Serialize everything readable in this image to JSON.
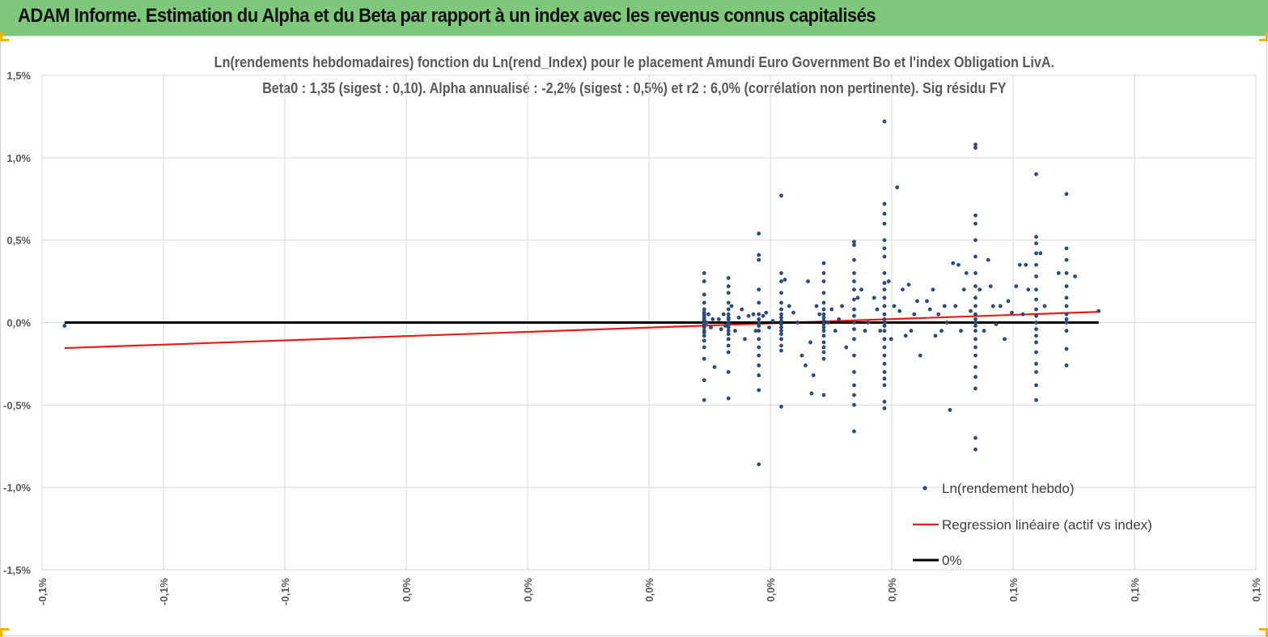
{
  "header": {
    "title": "ADAM Informe. Estimation du Alpha et du Beta par rapport à un index avec les revenus connus capitalisés"
  },
  "colors": {
    "header_bg": "#7dc87b",
    "points": "#2b4a7e",
    "regression": "#e0201b",
    "zero": "#000000",
    "grid": "#d9d9d9",
    "title_text": "#595959"
  },
  "chart_data": {
    "type": "scatter",
    "title": "Ln(rendements hebdomadaires) fonction du Ln(rend_Index) pour le placement Amundi Euro Government Bo et l'index Obligation LivA.",
    "subtitle": "Beta0 : 1,35  (sigest : 0,10).  Alpha annualisé : -2,2% (sigest : 0,5%) et r2 : 6,0% (corrélation non pertinente). Sig résidu FY",
    "xlabel": "",
    "ylabel": "",
    "xlim": [
      -0.1,
      0.1
    ],
    "ylim": [
      -1.5,
      1.5
    ],
    "x_tick_labels": [
      "-0,1%",
      "-0,1%",
      "-0,1%",
      "0,0%",
      "0,0%",
      "0,0%",
      "0,0%",
      "0,0%",
      "0,1%",
      "0,1%",
      "0,1%"
    ],
    "y_tick_labels": [
      "1,5%",
      "1,0%",
      "0,5%",
      "0,0%",
      "-0,5%",
      "-1,0%",
      "-1,5%"
    ],
    "legend": {
      "position": "bottom-right",
      "items": [
        "Ln(rendement hebdo)",
        "Regression linéaire (actif vs index)",
        "0%"
      ]
    },
    "series": [
      {
        "name": "Ln(rendement hebdo)",
        "kind": "points",
        "points": [
          [
            -0.0963,
            -0.02
          ],
          [
            0.0091,
            0.3
          ],
          [
            0.0091,
            0.25
          ],
          [
            0.0091,
            0.17
          ],
          [
            0.0091,
            0.12
          ],
          [
            0.0091,
            0.08
          ],
          [
            0.0091,
            0.06
          ],
          [
            0.0091,
            0.05
          ],
          [
            0.0091,
            0.04
          ],
          [
            0.0091,
            0.03
          ],
          [
            0.0091,
            0.02
          ],
          [
            0.0091,
            0.01
          ],
          [
            0.0091,
            0.0
          ],
          [
            0.0091,
            -0.01
          ],
          [
            0.0091,
            -0.02
          ],
          [
            0.0091,
            -0.03
          ],
          [
            0.0091,
            -0.05
          ],
          [
            0.0091,
            -0.06
          ],
          [
            0.0091,
            -0.08
          ],
          [
            0.0091,
            -0.11
          ],
          [
            0.0091,
            -0.15
          ],
          [
            0.0091,
            -0.22
          ],
          [
            0.0091,
            -0.35
          ],
          [
            0.0091,
            -0.47
          ],
          [
            0.0095,
            0.0
          ],
          [
            0.0098,
            0.05
          ],
          [
            0.0102,
            -0.03
          ],
          [
            0.0105,
            0.02
          ],
          [
            0.0108,
            -0.27
          ],
          [
            0.0131,
            0.27
          ],
          [
            0.0131,
            0.22
          ],
          [
            0.0131,
            0.18
          ],
          [
            0.0131,
            0.12
          ],
          [
            0.0131,
            0.08
          ],
          [
            0.0131,
            0.05
          ],
          [
            0.0131,
            0.03
          ],
          [
            0.0131,
            0.02
          ],
          [
            0.0131,
            0.0
          ],
          [
            0.0131,
            -0.01
          ],
          [
            0.0131,
            -0.03
          ],
          [
            0.0131,
            -0.05
          ],
          [
            0.0131,
            -0.07
          ],
          [
            0.0131,
            -0.1
          ],
          [
            0.0131,
            -0.14
          ],
          [
            0.0131,
            -0.18
          ],
          [
            0.0131,
            -0.3
          ],
          [
            0.0131,
            -0.46
          ],
          [
            0.0115,
            0.02
          ],
          [
            0.0119,
            -0.04
          ],
          [
            0.0123,
            0.05
          ],
          [
            0.0126,
            -0.02
          ],
          [
            0.0136,
            0.1
          ],
          [
            0.0142,
            -0.05
          ],
          [
            0.0148,
            0.03
          ],
          [
            0.0153,
            0.08
          ],
          [
            0.0158,
            -0.1
          ],
          [
            0.0164,
            0.04
          ],
          [
            0.0181,
            0.54
          ],
          [
            0.0181,
            0.41
          ],
          [
            0.0181,
            0.38
          ],
          [
            0.0181,
            0.2
          ],
          [
            0.0181,
            0.12
          ],
          [
            0.0181,
            0.05
          ],
          [
            0.0181,
            0.02
          ],
          [
            0.0181,
            0.0
          ],
          [
            0.0181,
            -0.02
          ],
          [
            0.0181,
            -0.05
          ],
          [
            0.0181,
            -0.1
          ],
          [
            0.0181,
            -0.15
          ],
          [
            0.0181,
            -0.2
          ],
          [
            0.0181,
            -0.26
          ],
          [
            0.0181,
            -0.32
          ],
          [
            0.0181,
            -0.41
          ],
          [
            0.0181,
            -0.86
          ],
          [
            0.0172,
            0.05
          ],
          [
            0.0176,
            -0.05
          ],
          [
            0.0188,
            0.04
          ],
          [
            0.0193,
            0.06
          ],
          [
            0.0198,
            -0.03
          ],
          [
            0.0204,
            0.01
          ],
          [
            0.0218,
            0.77
          ],
          [
            0.0218,
            0.3
          ],
          [
            0.0218,
            0.25
          ],
          [
            0.0218,
            0.18
          ],
          [
            0.0218,
            0.12
          ],
          [
            0.0218,
            0.08
          ],
          [
            0.0218,
            0.05
          ],
          [
            0.0218,
            0.03
          ],
          [
            0.0218,
            0.01
          ],
          [
            0.0218,
            -0.01
          ],
          [
            0.0218,
            -0.03
          ],
          [
            0.0218,
            -0.05
          ],
          [
            0.0218,
            -0.07
          ],
          [
            0.0218,
            -0.1
          ],
          [
            0.0218,
            -0.14
          ],
          [
            0.0218,
            -0.17
          ],
          [
            0.0218,
            -0.51
          ],
          [
            0.0224,
            0.26
          ],
          [
            0.0231,
            0.1
          ],
          [
            0.0238,
            0.06
          ],
          [
            0.0245,
            0.0
          ],
          [
            0.0252,
            -0.2
          ],
          [
            0.0258,
            -0.26
          ],
          [
            0.0262,
            0.25
          ],
          [
            0.0266,
            -0.12
          ],
          [
            0.0271,
            -0.32
          ],
          [
            0.0288,
            0.36
          ],
          [
            0.0288,
            0.3
          ],
          [
            0.0288,
            0.25
          ],
          [
            0.0288,
            0.18
          ],
          [
            0.0288,
            0.12
          ],
          [
            0.0288,
            0.08
          ],
          [
            0.0288,
            0.05
          ],
          [
            0.0288,
            0.03
          ],
          [
            0.0288,
            0.01
          ],
          [
            0.0288,
            -0.01
          ],
          [
            0.0288,
            -0.03
          ],
          [
            0.0288,
            -0.05
          ],
          [
            0.0288,
            -0.08
          ],
          [
            0.0288,
            -0.12
          ],
          [
            0.0288,
            -0.15
          ],
          [
            0.0288,
            -0.18
          ],
          [
            0.0288,
            -0.22
          ],
          [
            0.0288,
            -0.44
          ],
          [
            0.0268,
            -0.43
          ],
          [
            0.0276,
            0.1
          ],
          [
            0.0281,
            0.05
          ],
          [
            0.0295,
            0.0
          ],
          [
            0.0301,
            0.08
          ],
          [
            0.0307,
            -0.05
          ],
          [
            0.0313,
            0.02
          ],
          [
            0.0318,
            0.1
          ],
          [
            0.0325,
            -0.15
          ],
          [
            0.0338,
            0.49
          ],
          [
            0.0338,
            0.47
          ],
          [
            0.0338,
            0.38
          ],
          [
            0.0338,
            0.3
          ],
          [
            0.0338,
            0.25
          ],
          [
            0.0338,
            0.2
          ],
          [
            0.0338,
            0.14
          ],
          [
            0.0338,
            0.08
          ],
          [
            0.0338,
            0.04
          ],
          [
            0.0338,
            0.0
          ],
          [
            0.0338,
            -0.04
          ],
          [
            0.0338,
            -0.1
          ],
          [
            0.0338,
            -0.2
          ],
          [
            0.0338,
            -0.3
          ],
          [
            0.0338,
            -0.38
          ],
          [
            0.0338,
            -0.44
          ],
          [
            0.0338,
            -0.5
          ],
          [
            0.0338,
            -0.66
          ],
          [
            0.0344,
            0.15
          ],
          [
            0.035,
            0.2
          ],
          [
            0.0356,
            -0.05
          ],
          [
            0.0361,
            0.0
          ],
          [
            0.0388,
            1.22
          ],
          [
            0.0388,
            0.72
          ],
          [
            0.0388,
            0.66
          ],
          [
            0.0388,
            0.6
          ],
          [
            0.0388,
            0.5
          ],
          [
            0.0388,
            0.45
          ],
          [
            0.0388,
            0.4
          ],
          [
            0.0388,
            0.3
          ],
          [
            0.0388,
            0.24
          ],
          [
            0.0388,
            0.2
          ],
          [
            0.0388,
            0.15
          ],
          [
            0.0388,
            0.1
          ],
          [
            0.0388,
            0.05
          ],
          [
            0.0388,
            0.02
          ],
          [
            0.0388,
            0.0
          ],
          [
            0.0388,
            -0.02
          ],
          [
            0.0388,
            -0.05
          ],
          [
            0.0388,
            -0.1
          ],
          [
            0.0388,
            -0.15
          ],
          [
            0.0388,
            -0.2
          ],
          [
            0.0388,
            -0.25
          ],
          [
            0.0388,
            -0.3
          ],
          [
            0.0388,
            -0.34
          ],
          [
            0.0388,
            -0.38
          ],
          [
            0.0388,
            -0.48
          ],
          [
            0.0388,
            -0.52
          ],
          [
            0.0371,
            0.15
          ],
          [
            0.0376,
            0.08
          ],
          [
            0.0381,
            -0.05
          ],
          [
            0.0395,
            0.25
          ],
          [
            0.0399,
            -0.1
          ],
          [
            0.0404,
            0.1
          ],
          [
            0.0409,
            0.82
          ],
          [
            0.0413,
            0.07
          ],
          [
            0.0418,
            0.2
          ],
          [
            0.0423,
            -0.08
          ],
          [
            0.0428,
            0.23
          ],
          [
            0.0432,
            -0.05
          ],
          [
            0.0437,
            0.05
          ],
          [
            0.0442,
            0.13
          ],
          [
            0.0447,
            -0.2
          ],
          [
            0.0458,
            0.13
          ],
          [
            0.0463,
            0.08
          ],
          [
            0.0468,
            0.2
          ],
          [
            0.0472,
            -0.08
          ],
          [
            0.0477,
            0.05
          ],
          [
            0.0482,
            -0.05
          ],
          [
            0.0487,
            0.1
          ],
          [
            0.0491,
            0.0
          ],
          [
            0.0496,
            -0.53
          ],
          [
            0.0501,
            0.36
          ],
          [
            0.0505,
            0.1
          ],
          [
            0.051,
            0.35
          ],
          [
            0.0514,
            -0.05
          ],
          [
            0.0519,
            0.2
          ],
          [
            0.0523,
            0.3
          ],
          [
            0.0538,
            0.65
          ],
          [
            0.0538,
            0.6
          ],
          [
            0.0538,
            0.5
          ],
          [
            0.0538,
            0.4
          ],
          [
            0.0538,
            0.3
          ],
          [
            0.0538,
            0.22
          ],
          [
            0.0538,
            0.15
          ],
          [
            0.0538,
            0.1
          ],
          [
            0.0538,
            0.05
          ],
          [
            0.0538,
            0.02
          ],
          [
            0.0538,
            0.0
          ],
          [
            0.0538,
            -0.02
          ],
          [
            0.0538,
            -0.05
          ],
          [
            0.0538,
            -0.1
          ],
          [
            0.0538,
            -0.15
          ],
          [
            0.0538,
            -0.2
          ],
          [
            0.0538,
            -0.27
          ],
          [
            0.0538,
            -0.33
          ],
          [
            0.0538,
            -0.4
          ],
          [
            0.0538,
            -0.7
          ],
          [
            0.0538,
            -0.77
          ],
          [
            0.0538,
            1.08
          ],
          [
            0.0538,
            1.06
          ],
          [
            0.053,
            0.07
          ],
          [
            0.0545,
            0.2
          ],
          [
            0.0552,
            -0.05
          ],
          [
            0.0559,
            0.38
          ],
          [
            0.0563,
            0.22
          ],
          [
            0.0567,
            0.1
          ],
          [
            0.0572,
            -0.01
          ],
          [
            0.0579,
            0.1
          ],
          [
            0.0586,
            -0.1
          ],
          [
            0.0592,
            0.13
          ],
          [
            0.0598,
            0.06
          ],
          [
            0.0605,
            0.22
          ],
          [
            0.0611,
            0.35
          ],
          [
            0.0616,
            0.05
          ],
          [
            0.0621,
            0.35
          ],
          [
            0.0625,
            0.2
          ],
          [
            0.0638,
            0.9
          ],
          [
            0.0638,
            0.52
          ],
          [
            0.0638,
            0.48
          ],
          [
            0.0638,
            0.42
          ],
          [
            0.0638,
            0.35
          ],
          [
            0.0638,
            0.28
          ],
          [
            0.0638,
            0.2
          ],
          [
            0.0638,
            0.14
          ],
          [
            0.0638,
            0.08
          ],
          [
            0.0638,
            0.04
          ],
          [
            0.0638,
            0.0
          ],
          [
            0.0638,
            -0.04
          ],
          [
            0.0638,
            -0.08
          ],
          [
            0.0638,
            -0.12
          ],
          [
            0.0638,
            -0.18
          ],
          [
            0.0638,
            -0.25
          ],
          [
            0.0638,
            -0.3
          ],
          [
            0.0638,
            -0.38
          ],
          [
            0.0638,
            -0.47
          ],
          [
            0.0645,
            0.42
          ],
          [
            0.0652,
            0.1
          ],
          [
            0.0688,
            0.78
          ],
          [
            0.0688,
            0.45
          ],
          [
            0.0688,
            0.38
          ],
          [
            0.0688,
            0.3
          ],
          [
            0.0688,
            0.22
          ],
          [
            0.0688,
            0.15
          ],
          [
            0.0688,
            0.1
          ],
          [
            0.0688,
            0.05
          ],
          [
            0.0688,
            0.02
          ],
          [
            0.0688,
            0.0
          ],
          [
            0.0688,
            -0.05
          ],
          [
            0.0688,
            -0.16
          ],
          [
            0.0688,
            -0.26
          ],
          [
            0.0675,
            0.3
          ],
          [
            0.0702,
            0.28
          ],
          [
            0.0741,
            0.07
          ]
        ]
      },
      {
        "name": "Regression linéaire (actif vs index)",
        "kind": "line",
        "points": [
          [
            -0.0963,
            -0.155
          ],
          [
            0.0741,
            0.065
          ]
        ]
      },
      {
        "name": "0%",
        "kind": "line",
        "points": [
          [
            -0.0963,
            0.0
          ],
          [
            0.0741,
            0.0
          ]
        ]
      }
    ]
  }
}
